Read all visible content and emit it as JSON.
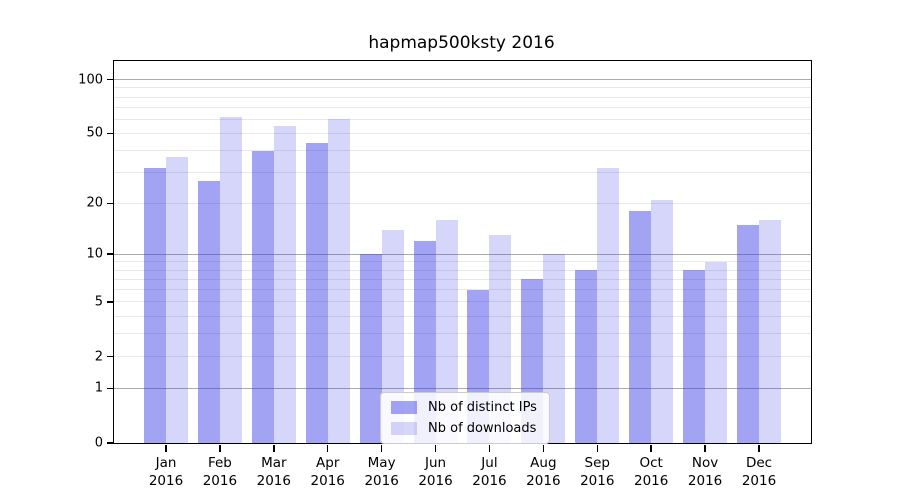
{
  "title": "hapmap500ksty 2016",
  "colors": {
    "axis": "#000000",
    "grid_major": "#ababab",
    "grid_minor": "#e8e8e8",
    "bar_distinct_ips": "rgba(51,51,230,0.45)",
    "bar_downloads": "rgba(51,51,230,0.20)",
    "legend_border": "#cccccc"
  },
  "chart_data": {
    "type": "bar",
    "title": "hapmap500ksty 2016",
    "categories": [
      "Jan 2016",
      "Feb 2016",
      "Mar 2016",
      "Apr 2016",
      "May 2016",
      "Jun 2016",
      "Jul 2016",
      "Aug 2016",
      "Sep 2016",
      "Oct 2016",
      "Nov 2016",
      "Dec 2016"
    ],
    "series": [
      {
        "name": "Nb of distinct IPs",
        "color": "rgba(51,51,230,0.45)",
        "values": [
          32,
          27,
          40,
          44,
          10,
          12,
          6,
          7,
          8,
          18,
          8,
          15
        ]
      },
      {
        "name": "Nb of downloads",
        "color": "rgba(51,51,230,0.20)",
        "values": [
          37,
          62,
          55,
          60,
          14,
          16,
          13,
          10,
          32,
          21,
          9,
          16
        ]
      }
    ],
    "xlabel": "",
    "ylabel": "",
    "yscale": "log1p",
    "ylim": [
      0,
      127
    ],
    "ymax": 127,
    "yticks": [
      0,
      1,
      2,
      5,
      10,
      20,
      50,
      100
    ],
    "major_gridlines": [
      1,
      10,
      100
    ],
    "minor_gridlines": [
      2,
      3,
      4,
      5,
      6,
      7,
      8,
      9,
      20,
      30,
      40,
      50,
      60,
      70,
      80,
      90
    ],
    "grid": true,
    "legend_position": "lower center"
  }
}
